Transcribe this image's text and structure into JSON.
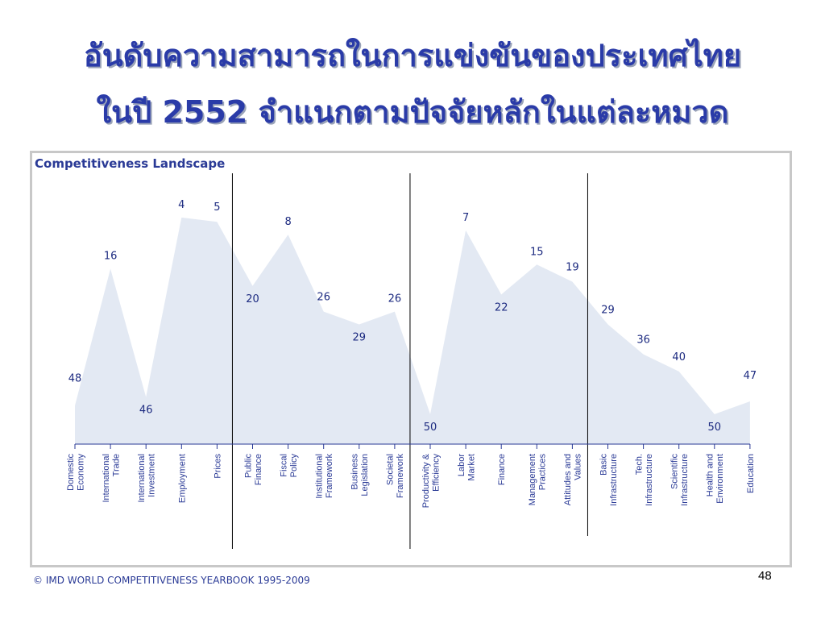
{
  "slide": {
    "title_line1": "อันดับความสามารถในการแข่งขันของประเทศไทย",
    "title_line2": "ในปี 2552 จำแนกตามปัจจัยหลักในแต่ละหมวด",
    "footer": "© IMD WORLD COMPETITIVENESS YEARBOOK 1995-2009",
    "page_number": "48"
  },
  "colors": {
    "title": "#2a3ba8",
    "area_fill": "#e3e9f3",
    "axis": "#2a3a96",
    "divider": "#000000"
  },
  "chart_data": {
    "type": "area",
    "title": "Competitiveness Landscape",
    "categories": [
      "Domestic Economy",
      "International Trade",
      "International Investment",
      "Employment",
      "Prices",
      "Public Finance",
      "Fiscal Policy",
      "Institutional Framework",
      "Business Legislation",
      "Societal Framework",
      "Productivity & Efficiency",
      "Labor Market",
      "Finance",
      "Management Practices",
      "Attitudes and Values",
      "Basic Infrastructure",
      "Tech. Infrastructure",
      "Scientific Infrastructure",
      "Health and Environment",
      "Education"
    ],
    "values": [
      48,
      16,
      46,
      4,
      5,
      20,
      8,
      26,
      29,
      26,
      50,
      7,
      22,
      15,
      19,
      29,
      36,
      40,
      50,
      47
    ],
    "y_axis": "rank (1 at top, 57 at baseline, not printed)",
    "group_dividers_after": [
      "Prices",
      "Societal Framework",
      "Attitudes and Values"
    ],
    "data_labels": true,
    "grid": false,
    "legend": "none"
  }
}
